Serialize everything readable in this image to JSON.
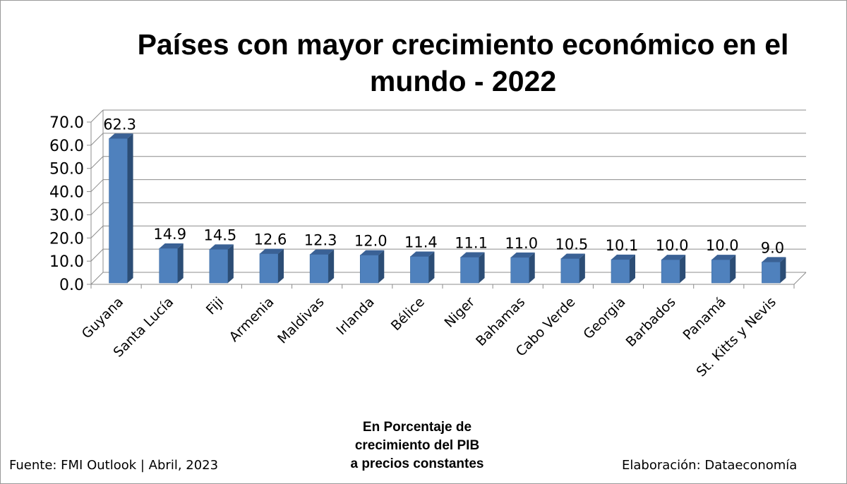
{
  "chart_data": {
    "type": "bar",
    "title": "Países con mayor crecimiento económico en el mundo - 2022",
    "categories": [
      "Guyana",
      "Santa Lucía",
      "Fiji",
      "Armenia",
      "Maldivas",
      "Irlanda",
      "Bélice",
      "Niger",
      "Bahamas",
      "Cabo Verde",
      "Georgia",
      "Barbados",
      "Panamá",
      "St. Kitts y Nevis"
    ],
    "values": [
      62.3,
      14.9,
      14.5,
      12.6,
      12.3,
      12.0,
      11.4,
      11.1,
      11.0,
      10.5,
      10.1,
      10.0,
      10.0,
      9.0
    ],
    "data_labels": [
      "62.3",
      "14.9",
      "14.5",
      "12.6",
      "12.3",
      "12.0",
      "11.4",
      "11.1",
      "11.0",
      "10.5",
      "10.1",
      "10.0",
      "10.0",
      "9.0"
    ],
    "y_ticks": [
      "0.0",
      "10.0",
      "20.0",
      "30.0",
      "40.0",
      "50.0",
      "60.0",
      "70.0"
    ],
    "ylim": [
      0,
      70
    ],
    "xlabel": "En Porcentaje de crecimiento del PIB a precios constantes",
    "ylabel": "",
    "grid": true,
    "legend": "none",
    "style": "3d-column",
    "bar_color": "#4F81BD"
  },
  "xlabel_lines": [
    "En Porcentaje de",
    "crecimiento del PIB",
    "a precios constantes"
  ],
  "footer": {
    "source": "Fuente: FMI Outlook | Abril, 2023",
    "credit": "Elaboración: Dataeconomía"
  }
}
